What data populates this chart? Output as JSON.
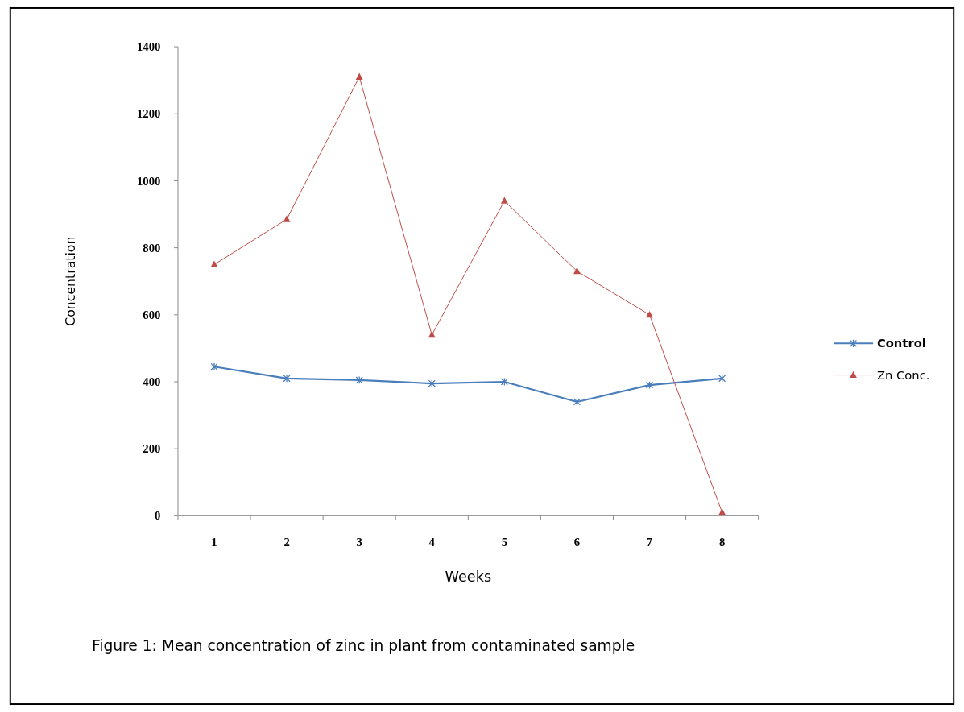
{
  "chart_data": {
    "type": "line",
    "xlabel": "Weeks",
    "ylabel": "Concentration",
    "categories": [
      "1",
      "2",
      "3",
      "4",
      "5",
      "6",
      "7",
      "8"
    ],
    "series": [
      {
        "name": "Control",
        "color": "#4a7ebb",
        "marker": "cross",
        "values": [
          445,
          410,
          405,
          395,
          400,
          340,
          390,
          410
        ]
      },
      {
        "name": "Zn Conc.",
        "color": "#be4b48",
        "marker": "triangle",
        "values": [
          750,
          885,
          1310,
          540,
          940,
          730,
          600,
          10
        ]
      }
    ],
    "ylim": [
      0,
      1400
    ],
    "yticks": [
      0,
      200,
      400,
      600,
      800,
      1000,
      1200,
      1400
    ],
    "legend": "right",
    "grid": false,
    "annotations": [
      "Figure 1:  Mean concentration of zinc in plant from contaminated sample"
    ]
  }
}
